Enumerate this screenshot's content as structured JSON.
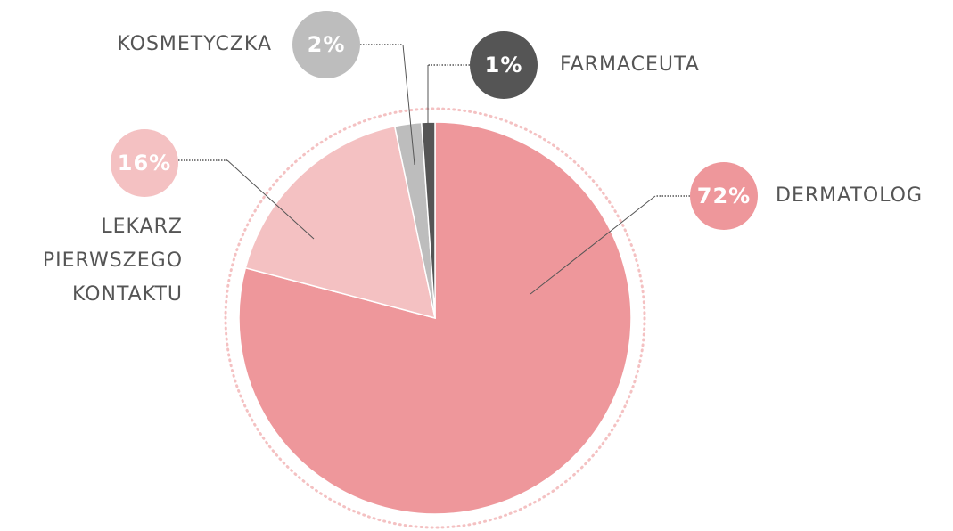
{
  "chart_data": {
    "type": "pie",
    "categories": [
      "DERMATOLOG",
      "LEKARZ PIERWSZEGO KONTAKTU",
      "KOSMETYCZKA",
      "FARMACEUTA"
    ],
    "values": [
      72,
      16,
      2,
      1
    ],
    "value_labels": [
      "72%",
      "16%",
      "2%",
      "1%"
    ],
    "colors": [
      "#ee979b",
      "#f4c1c2",
      "#bdbdbd",
      "#555555"
    ]
  }
}
